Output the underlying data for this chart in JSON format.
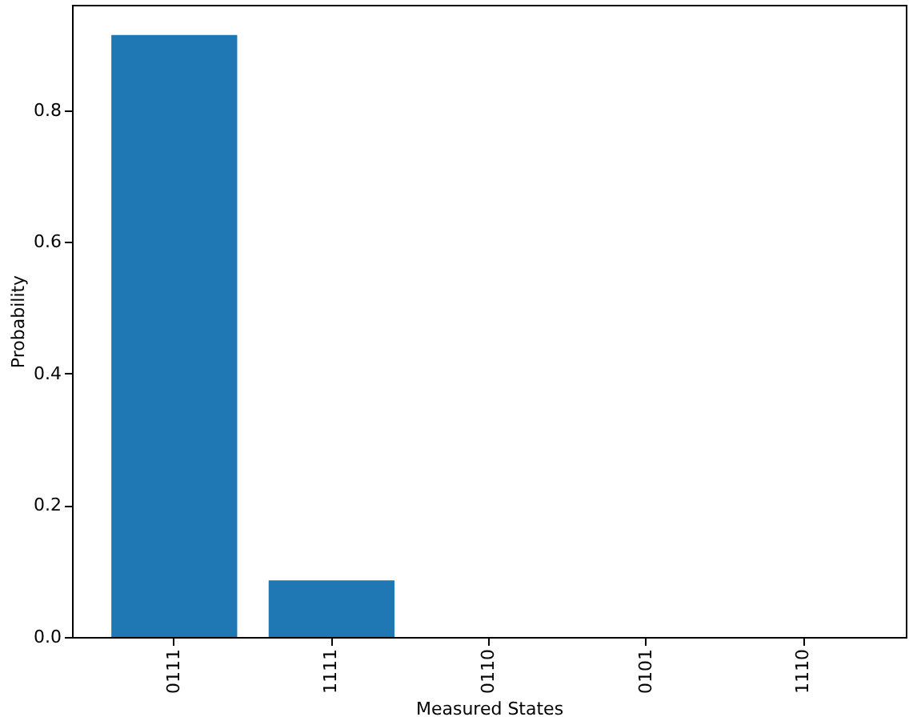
{
  "chart_data": {
    "type": "bar",
    "xlabel": "Measured States",
    "ylabel": "Probability",
    "categories": [
      "0111",
      "1111",
      "0110",
      "0101",
      "1110"
    ],
    "values": [
      0.914,
      0.086,
      0.0,
      0.0,
      0.0
    ],
    "color": "#1f77b4",
    "ylim": [
      0,
      0.96
    ],
    "yticks": [
      {
        "value": 0,
        "label": "0.0"
      },
      0.2,
      0.4,
      0.6,
      0.8
    ],
    "grid": false
  }
}
